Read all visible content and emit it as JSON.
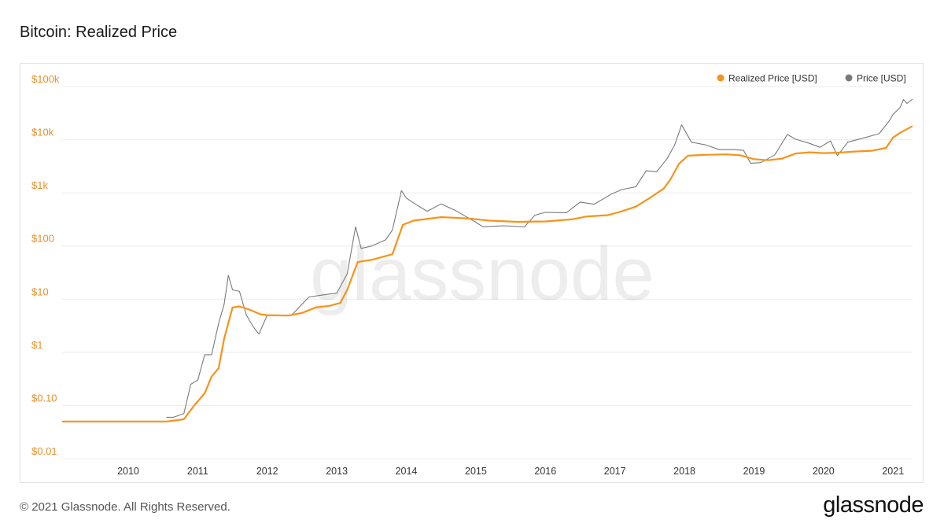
{
  "header": {
    "title": "Bitcoin: Realized Price"
  },
  "footer": {
    "copyright": "© 2021 Glassnode. All Rights Reserved.",
    "brand": "glassnode"
  },
  "watermark": "glassnode",
  "chart_data": {
    "type": "line",
    "title": "Bitcoin: Realized Price",
    "y_scale": "log",
    "ylim": [
      0.01,
      100000
    ],
    "xlim": [
      2009.05,
      2021.28
    ],
    "grid": true,
    "legend_position": "top-right",
    "y_ticks": [
      {
        "value": 0.01,
        "label": "$0.01"
      },
      {
        "value": 0.1,
        "label": "$0.10"
      },
      {
        "value": 1,
        "label": "$1"
      },
      {
        "value": 10,
        "label": "$10"
      },
      {
        "value": 100,
        "label": "$100"
      },
      {
        "value": 1000,
        "label": "$1k"
      },
      {
        "value": 10000,
        "label": "$10k"
      },
      {
        "value": 100000,
        "label": "$100k"
      }
    ],
    "x_ticks": [
      "2010",
      "2011",
      "2012",
      "2013",
      "2014",
      "2015",
      "2016",
      "2017",
      "2018",
      "2019",
      "2020",
      "2021"
    ],
    "series": [
      {
        "name": "Realized Price [USD]",
        "color": "#f7931a",
        "points": [
          [
            2009.05,
            0.05
          ],
          [
            2010.55,
            0.05
          ],
          [
            2010.8,
            0.055
          ],
          [
            2010.95,
            0.1
          ],
          [
            2011.1,
            0.17
          ],
          [
            2011.2,
            0.35
          ],
          [
            2011.3,
            0.5
          ],
          [
            2011.38,
            1.8
          ],
          [
            2011.5,
            7
          ],
          [
            2011.6,
            7.3
          ],
          [
            2011.75,
            6.3
          ],
          [
            2011.9,
            5.2
          ],
          [
            2012.0,
            5.0
          ],
          [
            2012.3,
            4.9
          ],
          [
            2012.5,
            5.5
          ],
          [
            2012.7,
            7
          ],
          [
            2012.9,
            7.5
          ],
          [
            2013.05,
            8.5
          ],
          [
            2013.15,
            15
          ],
          [
            2013.3,
            50
          ],
          [
            2013.5,
            55
          ],
          [
            2013.8,
            70
          ],
          [
            2013.95,
            250
          ],
          [
            2014.1,
            300
          ],
          [
            2014.5,
            350
          ],
          [
            2014.9,
            330
          ],
          [
            2015.2,
            300
          ],
          [
            2015.6,
            285
          ],
          [
            2016.0,
            290
          ],
          [
            2016.4,
            320
          ],
          [
            2016.6,
            360
          ],
          [
            2016.9,
            380
          ],
          [
            2017.1,
            450
          ],
          [
            2017.3,
            550
          ],
          [
            2017.5,
            800
          ],
          [
            2017.7,
            1200
          ],
          [
            2017.8,
            1800
          ],
          [
            2017.92,
            3500
          ],
          [
            2018.05,
            5000
          ],
          [
            2018.3,
            5200
          ],
          [
            2018.6,
            5300
          ],
          [
            2018.8,
            5100
          ],
          [
            2019.0,
            4300
          ],
          [
            2019.2,
            4100
          ],
          [
            2019.4,
            4400
          ],
          [
            2019.6,
            5500
          ],
          [
            2019.8,
            5800
          ],
          [
            2020.0,
            5600
          ],
          [
            2020.2,
            5700
          ],
          [
            2020.45,
            6000
          ],
          [
            2020.7,
            6200
          ],
          [
            2020.9,
            7000
          ],
          [
            2021.0,
            11000
          ],
          [
            2021.1,
            13500
          ],
          [
            2021.28,
            18000
          ]
        ]
      },
      {
        "name": "Price [USD]",
        "color": "#7a7a7a",
        "points": [
          [
            2010.55,
            0.06
          ],
          [
            2010.65,
            0.06
          ],
          [
            2010.8,
            0.07
          ],
          [
            2010.9,
            0.25
          ],
          [
            2011.0,
            0.3
          ],
          [
            2011.1,
            0.9
          ],
          [
            2011.2,
            0.9
          ],
          [
            2011.3,
            3.5
          ],
          [
            2011.38,
            8
          ],
          [
            2011.44,
            28
          ],
          [
            2011.5,
            15
          ],
          [
            2011.6,
            14
          ],
          [
            2011.7,
            5
          ],
          [
            2011.8,
            3
          ],
          [
            2011.88,
            2.2
          ],
          [
            2012.0,
            5
          ],
          [
            2012.15,
            5
          ],
          [
            2012.35,
            5
          ],
          [
            2012.5,
            8
          ],
          [
            2012.6,
            11
          ],
          [
            2012.8,
            12
          ],
          [
            2013.0,
            13
          ],
          [
            2013.15,
            30
          ],
          [
            2013.27,
            230
          ],
          [
            2013.35,
            90
          ],
          [
            2013.5,
            100
          ],
          [
            2013.7,
            130
          ],
          [
            2013.8,
            200
          ],
          [
            2013.93,
            1100
          ],
          [
            2014.0,
            800
          ],
          [
            2014.1,
            650
          ],
          [
            2014.3,
            450
          ],
          [
            2014.5,
            620
          ],
          [
            2014.7,
            470
          ],
          [
            2015.0,
            280
          ],
          [
            2015.1,
            230
          ],
          [
            2015.4,
            240
          ],
          [
            2015.7,
            230
          ],
          [
            2015.85,
            380
          ],
          [
            2016.0,
            430
          ],
          [
            2016.3,
            420
          ],
          [
            2016.5,
            670
          ],
          [
            2016.7,
            610
          ],
          [
            2016.95,
            950
          ],
          [
            2017.1,
            1150
          ],
          [
            2017.3,
            1300
          ],
          [
            2017.45,
            2600
          ],
          [
            2017.6,
            2500
          ],
          [
            2017.75,
            4400
          ],
          [
            2017.86,
            8000
          ],
          [
            2017.96,
            19000
          ],
          [
            2018.1,
            9000
          ],
          [
            2018.3,
            8000
          ],
          [
            2018.5,
            6500
          ],
          [
            2018.7,
            6500
          ],
          [
            2018.85,
            6300
          ],
          [
            2018.95,
            3600
          ],
          [
            2019.1,
            3700
          ],
          [
            2019.3,
            5200
          ],
          [
            2019.48,
            12500
          ],
          [
            2019.6,
            10200
          ],
          [
            2019.8,
            8500
          ],
          [
            2019.95,
            7200
          ],
          [
            2020.1,
            9500
          ],
          [
            2020.2,
            5000
          ],
          [
            2020.35,
            9000
          ],
          [
            2020.6,
            11000
          ],
          [
            2020.8,
            13000
          ],
          [
            2020.95,
            23000
          ],
          [
            2021.0,
            30000
          ],
          [
            2021.1,
            40000
          ],
          [
            2021.15,
            57000
          ],
          [
            2021.2,
            48000
          ],
          [
            2021.28,
            58000
          ]
        ]
      }
    ]
  }
}
